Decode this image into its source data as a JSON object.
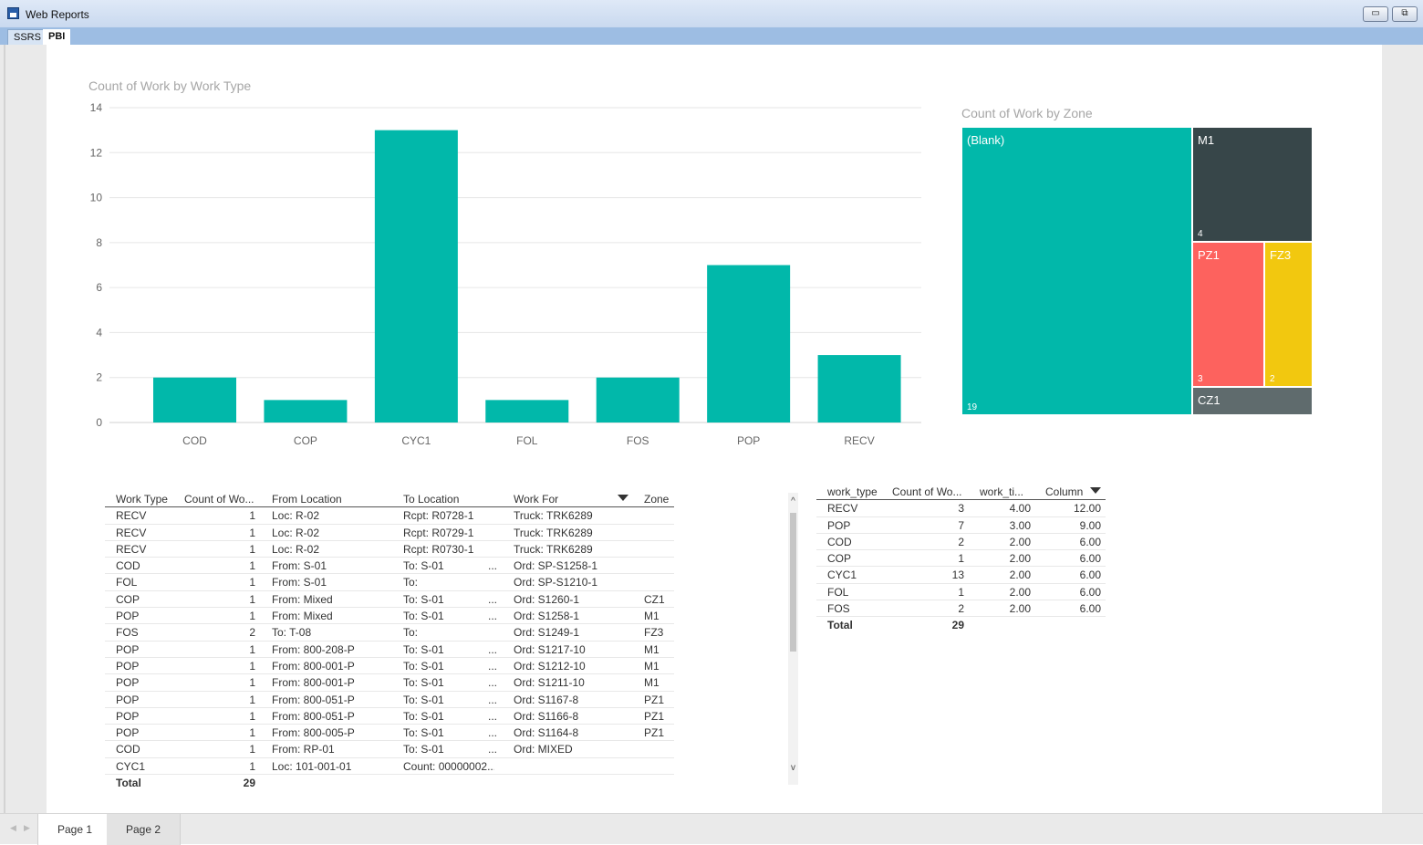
{
  "window": {
    "title": "Web Reports",
    "minimize_icon": "▭",
    "restore_icon": "⧉"
  },
  "top_tabs": [
    {
      "label": "SSRS"
    },
    {
      "label": "PBI"
    }
  ],
  "bar_chart": {
    "title": "Count of Work by Work Type",
    "chart_data": {
      "type": "bar",
      "title": "Count of Work by Work Type",
      "categories": [
        "COD",
        "COP",
        "CYC1",
        "FOL",
        "FOS",
        "POP",
        "RECV"
      ],
      "values": [
        2,
        1,
        13,
        1,
        2,
        7,
        3
      ],
      "ylim": [
        0,
        14
      ],
      "yticks": [
        0,
        2,
        4,
        6,
        8,
        10,
        12,
        14
      ],
      "grid": true,
      "color": "#01b8aa"
    }
  },
  "treemap": {
    "title": "Count of Work by Zone",
    "tiles": [
      {
        "label": "(Blank)",
        "value": "19",
        "color": "#01b8aa"
      },
      {
        "label": "M1",
        "value": "4",
        "color": "#374649"
      },
      {
        "label": "PZ1",
        "value": "3",
        "color": "#fd625e"
      },
      {
        "label": "FZ3",
        "value": "2",
        "color": "#f2c80f"
      },
      {
        "label": "CZ1",
        "value": "",
        "color": "#5f6b6d"
      }
    ]
  },
  "left_table": {
    "headers": [
      "Work Type",
      "Count of Wo...",
      "From Location",
      "To Location",
      "Work For",
      "Zone"
    ],
    "rows": [
      [
        "RECV",
        "1",
        "Loc:   R-02",
        "Rcpt:  R0728-1",
        "",
        "Truck: TRK6289",
        ""
      ],
      [
        "RECV",
        "1",
        "Loc:   R-02",
        "Rcpt:  R0729-1",
        "",
        "Truck: TRK6289",
        ""
      ],
      [
        "RECV",
        "1",
        "Loc:   R-02",
        "Rcpt:  R0730-1",
        "",
        "Truck: TRK6289",
        ""
      ],
      [
        "COD",
        "1",
        "From: S-01",
        "To:   S-01",
        "...",
        "Ord:  SP-S1258-1",
        ""
      ],
      [
        "FOL",
        "1",
        "From: S-01",
        "To:",
        "",
        "Ord:  SP-S1210-1",
        ""
      ],
      [
        "COP",
        "1",
        "From: Mixed",
        "To:  S-01",
        "...",
        "Ord:  S1260-1",
        "CZ1"
      ],
      [
        "POP",
        "1",
        "From: Mixed",
        "To:  S-01",
        "...",
        "Ord:  S1258-1",
        "M1"
      ],
      [
        "FOS",
        "2",
        "To:   T-08",
        "To:",
        "",
        "Ord:  S1249-1",
        "FZ3"
      ],
      [
        "POP",
        "1",
        "From: 800-208-P",
        "To:  S-01",
        "...",
        "Ord:  S1217-10",
        "M1"
      ],
      [
        "POP",
        "1",
        "From: 800-001-P",
        "To:  S-01",
        "...",
        "Ord:  S1212-10",
        "M1"
      ],
      [
        "POP",
        "1",
        "From: 800-001-P",
        "To:  S-01",
        "...",
        "Ord:  S1211-10",
        "M1"
      ],
      [
        "POP",
        "1",
        "From: 800-051-P",
        "To:  S-01",
        "...",
        "Ord:  S1167-8",
        "PZ1"
      ],
      [
        "POP",
        "1",
        "From: 800-051-P",
        "To:  S-01",
        "...",
        "Ord:  S1166-8",
        "PZ1"
      ],
      [
        "POP",
        "1",
        "From: 800-005-P",
        "To:  S-01",
        "...",
        "Ord:  S1164-8",
        "PZ1"
      ],
      [
        "COD",
        "1",
        "From: RP-01",
        "To:  S-01",
        "...",
        "Ord:  MIXED",
        ""
      ],
      [
        "CYC1",
        "1",
        "Loc:   101-001-01",
        "Count: 00000002...",
        "",
        "",
        ""
      ]
    ],
    "total_label": "Total",
    "total_value": "29"
  },
  "right_table": {
    "headers": [
      "work_type",
      "Count of Wo...",
      "work_ti...",
      "Column"
    ],
    "rows": [
      [
        "RECV",
        "3",
        "4.00",
        "12.00"
      ],
      [
        "POP",
        "7",
        "3.00",
        "9.00"
      ],
      [
        "COD",
        "2",
        "2.00",
        "6.00"
      ],
      [
        "COP",
        "1",
        "2.00",
        "6.00"
      ],
      [
        "CYC1",
        "13",
        "2.00",
        "6.00"
      ],
      [
        "FOL",
        "1",
        "2.00",
        "6.00"
      ],
      [
        "FOS",
        "2",
        "2.00",
        "6.00"
      ]
    ],
    "total_label": "Total",
    "total_value": "29"
  },
  "scroll": {
    "up": "^",
    "down": "v"
  },
  "page_tabs": [
    {
      "label": "Page 1"
    },
    {
      "label": "Page 2"
    }
  ],
  "nav": {
    "prev": "◀",
    "next": "▶"
  }
}
